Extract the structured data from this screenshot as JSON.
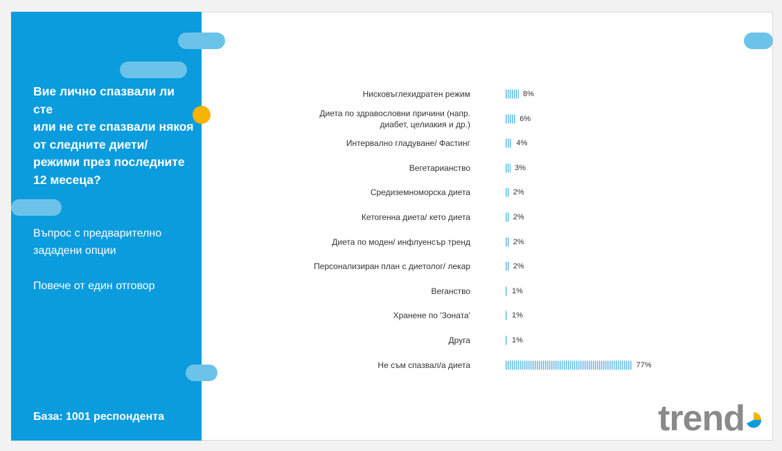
{
  "left_panel": {
    "question_lines": [
      "Вие лично спазвали ли сте",
      "или не сте спазвали някоя",
      "от следните диети/",
      "режими през последните",
      "12 месеца?"
    ],
    "note1_lines": [
      "Въпрос с предварително",
      "зададени опции"
    ],
    "note2": "Повече от един отговор",
    "base": "База:  1001 респондента"
  },
  "logo": {
    "text": "trend"
  },
  "colors": {
    "panel": "#0a9cdc",
    "accent_pill": "#6cc3e9",
    "dot": "#f6b400",
    "bar": "#5fb7e2"
  },
  "chart_data": {
    "type": "bar",
    "orientation": "horizontal",
    "categories": [
      [
        "Нисковъглехидратен режим"
      ],
      [
        "Диета по здравословни причини (напр.",
        "диабет, целиакия и др.)"
      ],
      [
        "Интервално гладуване/ Фастинг"
      ],
      [
        "Вегетарианство"
      ],
      [
        "Средиземноморска диета"
      ],
      [
        "Кетогенна диета/ кето диета"
      ],
      [
        "Диета по моден/ инфлуенсър тренд"
      ],
      [
        "Персонализиран план с диетолог/ лекар"
      ],
      [
        "Веганство"
      ],
      [
        "Хранене по 'Зоната'"
      ],
      [
        "Друга"
      ],
      [
        "Не съм спазвал/а диета"
      ]
    ],
    "values": [
      8,
      6,
      4,
      3,
      2,
      2,
      2,
      2,
      1,
      1,
      1,
      77
    ],
    "value_labels": [
      "8%",
      "6%",
      "4%",
      "3%",
      "2%",
      "2%",
      "2%",
      "2%",
      "1%",
      "1%",
      "1%",
      "77%"
    ],
    "xlim": [
      0,
      100
    ],
    "grid": false
  }
}
